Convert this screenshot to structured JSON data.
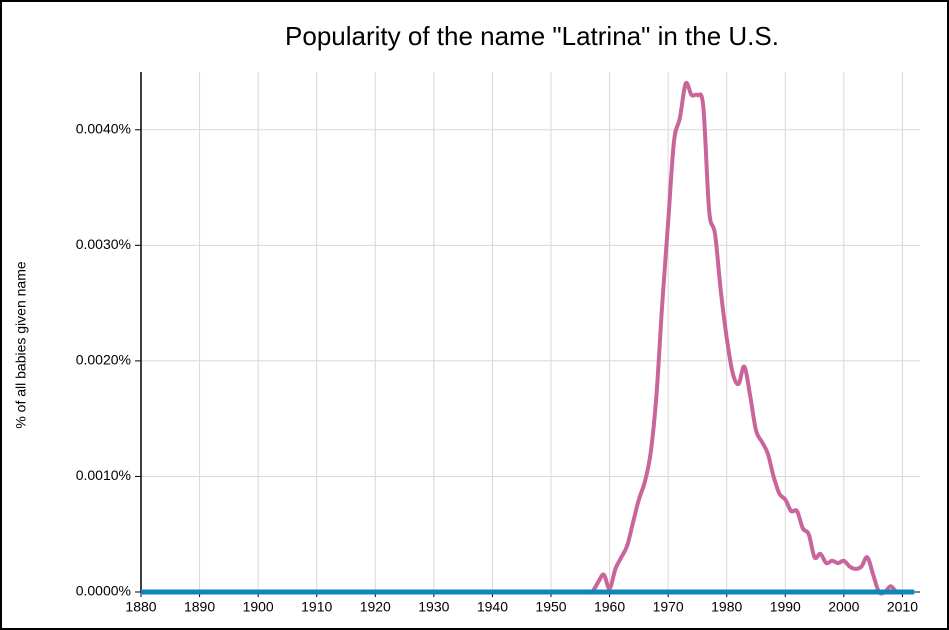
{
  "chart_data": {
    "type": "line",
    "title": "Popularity of the name \"Latrina\" in the U.S.",
    "y_label": "% of all babies given name",
    "x": [
      1880,
      1956,
      1957,
      1958,
      1959,
      1960,
      1961,
      1962,
      1963,
      1964,
      1965,
      1966,
      1967,
      1968,
      1969,
      1970,
      1971,
      1972,
      1973,
      1974,
      1975,
      1976,
      1977,
      1978,
      1979,
      1980,
      1981,
      1982,
      1983,
      1984,
      1985,
      1986,
      1987,
      1988,
      1989,
      1990,
      1991,
      1992,
      1993,
      1994,
      1995,
      1996,
      1997,
      1998,
      1999,
      2000,
      2001,
      2002,
      2003,
      2004,
      2005,
      2006,
      2007,
      2008,
      2009,
      2010,
      2011,
      2012
    ],
    "series": [
      {
        "color": "#0e86b8",
        "values": [
          0,
          0,
          0,
          0,
          0,
          0,
          0,
          0,
          0,
          0,
          0,
          0,
          0,
          0,
          0,
          0,
          0,
          0,
          0,
          0,
          0,
          0,
          0,
          0,
          0,
          0,
          0,
          0,
          0,
          0,
          0,
          0,
          0,
          0,
          0,
          0,
          0,
          0,
          0,
          0,
          0,
          0,
          0,
          0,
          0,
          0,
          0,
          0,
          0,
          0,
          0,
          0,
          0,
          0,
          0,
          0,
          0,
          0
        ]
      },
      {
        "color": "#c9659b",
        "values": [
          null,
          0,
          0,
          8e-05,
          0.00015,
          3e-05,
          0.0002,
          0.0003,
          0.0004,
          0.0006,
          0.0008,
          0.00095,
          0.0012,
          0.0017,
          0.0025,
          0.0032,
          0.0039,
          0.0041,
          0.0044,
          0.0043,
          0.0043,
          0.0042,
          0.0033,
          0.0031,
          0.0026,
          0.0022,
          0.0019,
          0.0018,
          0.00195,
          0.0017,
          0.0014,
          0.0013,
          0.0012,
          0.001,
          0.00085,
          0.0008,
          0.0007,
          0.0007,
          0.00055,
          0.0005,
          0.0003,
          0.00033,
          0.00025,
          0.00027,
          0.00025,
          0.00027,
          0.00022,
          0.0002,
          0.00022,
          0.0003,
          0.00015,
          0,
          0,
          5e-05,
          0,
          0,
          0,
          0
        ]
      }
    ],
    "xlim": [
      1880,
      2013
    ],
    "xticks": [
      1880,
      1890,
      1900,
      1910,
      1920,
      1930,
      1940,
      1950,
      1960,
      1970,
      1980,
      1990,
      2000,
      2010
    ],
    "ylim": [
      0,
      0.0045
    ],
    "yticks": [
      {
        "value": 0,
        "label": "0.0000%"
      },
      {
        "value": 0.001,
        "label": "0.0010%"
      },
      {
        "value": 0.002,
        "label": "0.0020%"
      },
      {
        "value": 0.003,
        "label": "0.0030%"
      },
      {
        "value": 0.004,
        "label": "0.0040%"
      }
    ],
    "grid": true
  }
}
